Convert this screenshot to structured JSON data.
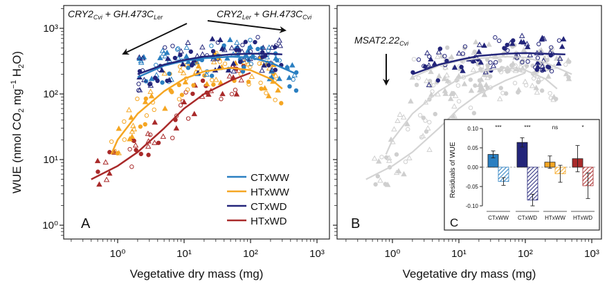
{
  "figure": {
    "ylabel": "WUE (nmol CO₂ mg⁻¹ H₂O)",
    "xlabel_a": "Vegetative dry mass (mg)",
    "xlabel_b": "Vegetative dry mass (mg)",
    "panel_a": "A",
    "panel_b": "B",
    "panel_c": "C",
    "ann_1": "CRY2Cvi + GH.473CLer",
    "ann_2": "CRY2Ler + GH.473CCvi",
    "ann_3": "MSAT2.22Cvi",
    "inset_ylabel": "Residuals of WUE"
  },
  "colors": {
    "CTxWW": "#2a7fc1",
    "CTxWW_light": "#8cc4ea",
    "HTxWW": "#f5a623",
    "HTxWW_light": "#fcd38a",
    "CTxWD": "#23257a",
    "CTxWD_light": "#5a5cb0",
    "HTxWD": "#a92a2a",
    "HTxWD_light": "#e48c8c",
    "grey": "#cfcfcf"
  },
  "chart_data": [
    {
      "type": "scatter",
      "panel": "A",
      "xlabel": "Vegetative dry mass (mg)",
      "ylabel": "WUE (nmol CO2 mg-1 H2O)",
      "x_scale": "log",
      "y_scale": "log",
      "x_ticks": [
        "10⁰",
        "10¹",
        "10²",
        "10³"
      ],
      "y_ticks": [
        "10⁰",
        "10¹",
        "10²",
        "10³"
      ],
      "xlim": [
        0.2,
        700
      ],
      "ylim": [
        0.5,
        2000
      ],
      "legend": "bottom-right",
      "series": [
        {
          "name": "CTxWW",
          "fit_x": [
            2,
            5,
            10,
            20,
            50,
            100,
            200,
            500
          ],
          "fit_y": [
            180,
            270,
            320,
            350,
            370,
            360,
            300,
            200
          ]
        },
        {
          "name": "HTxWW",
          "fit_x": [
            0.8,
            1,
            2,
            5,
            10,
            20,
            50,
            100,
            200,
            300
          ],
          "fit_y": [
            12,
            20,
            50,
            110,
            170,
            220,
            250,
            230,
            170,
            120
          ]
        },
        {
          "name": "CTxWD",
          "fit_x": [
            2,
            5,
            10,
            20,
            50,
            100,
            200,
            300
          ],
          "fit_y": [
            200,
            280,
            330,
            370,
            400,
            410,
            410,
            400
          ]
        },
        {
          "name": "HTxWD",
          "fit_x": [
            0.4,
            1,
            2,
            5,
            10,
            20,
            50,
            100
          ],
          "fit_y": [
            5,
            8,
            13,
            30,
            60,
            100,
            160,
            210
          ]
        }
      ]
    },
    {
      "type": "scatter",
      "panel": "B",
      "xlabel": "Vegetative dry mass (mg)",
      "x_scale": "log",
      "y_scale": "log",
      "x_ticks": [
        "10⁰",
        "10¹",
        "10²",
        "10³"
      ],
      "xlim": [
        0.2,
        700
      ],
      "ylim": [
        0.5,
        2000
      ],
      "series": [
        {
          "name": "CTxWD",
          "fit_x": [
            2,
            5,
            10,
            20,
            50,
            100,
            200,
            400
          ],
          "fit_y": [
            200,
            280,
            330,
            380,
            410,
            420,
            410,
            400
          ]
        }
      ]
    },
    {
      "type": "bar",
      "panel": "C",
      "ylabel": "Residuals of WUE",
      "categories": [
        "CTxWW",
        "CTxWD",
        "HTxWW",
        "HTxWD"
      ],
      "y_ticks": [
        "0.10",
        "0.05",
        "0.00",
        "-0.05",
        "-0.10"
      ],
      "ylim": [
        -0.1,
        0.1
      ],
      "significance": [
        "***",
        "***",
        "ns",
        "*"
      ],
      "series": [
        {
          "name": "solid",
          "values": [
            0.033,
            0.064,
            0.013,
            0.022
          ],
          "errors": [
            0.009,
            0.012,
            0.016,
            0.034
          ]
        },
        {
          "name": "hatched",
          "values": [
            -0.037,
            -0.085,
            -0.017,
            -0.048
          ],
          "errors": [
            0.01,
            0.015,
            0.022,
            0.033
          ]
        }
      ]
    }
  ]
}
